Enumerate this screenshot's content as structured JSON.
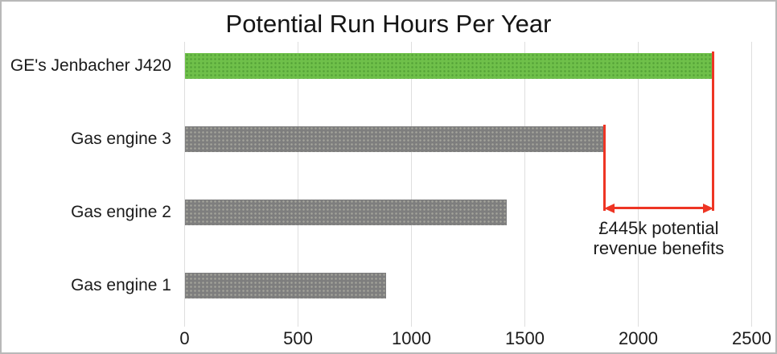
{
  "chart_data": {
    "type": "bar",
    "orientation": "horizontal",
    "title": "Potential Run Hours Per Year",
    "categories": [
      "GE's Jenbacher J420",
      "Gas engine 3",
      "Gas engine 2",
      "Gas engine 1"
    ],
    "values": [
      2330,
      1850,
      1420,
      890
    ],
    "bar_colors": [
      "green",
      "gray",
      "gray",
      "gray"
    ],
    "xlabel": "",
    "ylabel": "",
    "xlim": [
      0,
      2500
    ],
    "x_ticks": [
      "0",
      "500",
      "1000",
      "1500",
      "2000",
      "2500"
    ],
    "grid": "vertical-light",
    "legend": "none",
    "annotation": {
      "text_line1": "£445k potential",
      "text_line2": "revenue benefits",
      "from_value": 1850,
      "to_value": 2330
    }
  },
  "colors": {
    "accent_green": "#6fc04a",
    "bar_gray": "#7e7e7e",
    "annotation_red": "#ee3524",
    "gridline": "#dedede",
    "text": "#1b1b1b"
  }
}
